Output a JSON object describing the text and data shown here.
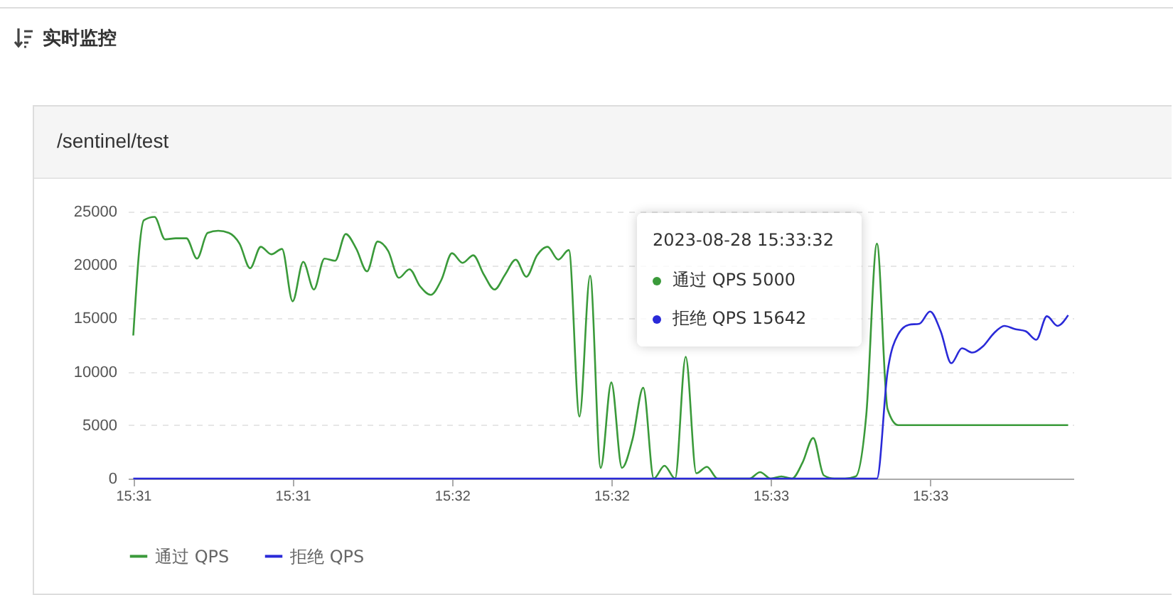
{
  "chart_data": {
    "type": "line",
    "title": "实时监控",
    "subtitle": "/sentinel/test",
    "categories": [
      "15:31",
      null,
      null,
      null,
      null,
      null,
      null,
      null,
      null,
      null,
      null,
      null,
      null,
      null,
      null,
      "15:31",
      null,
      null,
      null,
      null,
      null,
      null,
      null,
      null,
      null,
      null,
      null,
      null,
      null,
      null,
      "15:32",
      null,
      null,
      null,
      null,
      null,
      null,
      null,
      null,
      null,
      null,
      null,
      null,
      null,
      null,
      "15:32",
      null,
      null,
      null,
      null,
      null,
      null,
      null,
      null,
      null,
      null,
      null,
      null,
      null,
      null,
      "15:33",
      null,
      null,
      null,
      null,
      null,
      null,
      null,
      null,
      null,
      null,
      null,
      null,
      null,
      null,
      "15:33",
      null,
      null,
      null,
      null,
      null,
      null,
      null,
      null,
      null,
      null,
      null,
      null,
      null
    ],
    "series": [
      {
        "name": "通过 QPS",
        "color": "#3a9a3a",
        "values": [
          13400,
          24200,
          24500,
          22400,
          22500,
          22500,
          20600,
          23000,
          23200,
          23000,
          22000,
          19700,
          21700,
          21000,
          21500,
          16600,
          20300,
          17700,
          20600,
          20400,
          22900,
          21500,
          19400,
          22200,
          21300,
          18800,
          19600,
          18000,
          17200,
          18600,
          21100,
          20200,
          20900,
          19100,
          17700,
          19100,
          20500,
          18900,
          20900,
          21700,
          20500,
          21400,
          5800,
          19000,
          1000,
          9000,
          1000,
          3700,
          8500,
          0,
          1200,
          0,
          11400,
          500,
          1100,
          0,
          0,
          0,
          0,
          600,
          0,
          200,
          0,
          1500,
          3800,
          300,
          0,
          0,
          200,
          6000,
          22000,
          6500,
          5000,
          5000,
          5000,
          5000,
          5000,
          5000,
          5000,
          5000,
          5000,
          5000,
          5000,
          5000,
          5000,
          5000,
          5000,
          5000,
          5000
        ]
      },
      {
        "name": "拒绝 QPS",
        "color": "#2a2ad8",
        "values": [
          0,
          0,
          0,
          0,
          0,
          0,
          0,
          0,
          0,
          0,
          0,
          0,
          0,
          0,
          0,
          0,
          0,
          0,
          0,
          0,
          0,
          0,
          0,
          0,
          0,
          0,
          0,
          0,
          0,
          0,
          0,
          0,
          0,
          0,
          0,
          0,
          0,
          0,
          0,
          0,
          0,
          0,
          0,
          0,
          0,
          0,
          0,
          0,
          0,
          0,
          0,
          0,
          0,
          0,
          0,
          0,
          0,
          0,
          0,
          0,
          0,
          0,
          0,
          0,
          0,
          0,
          0,
          0,
          0,
          0,
          0,
          10000,
          13500,
          14400,
          14500,
          15642,
          13800,
          10800,
          12200,
          11800,
          12400,
          13600,
          14300,
          14000,
          13800,
          13000,
          15200,
          14300,
          15300
        ]
      }
    ],
    "ylim": [
      0,
      25000
    ],
    "yticks": [
      0,
      5000,
      10000,
      15000,
      20000,
      25000
    ],
    "grid": "y",
    "legend": "bottom",
    "line_style": "solid",
    "annotations": [
      "2023-08-28 15:33:32",
      "通过 QPS 5000",
      "拒绝 QPS 15642"
    ]
  }
}
